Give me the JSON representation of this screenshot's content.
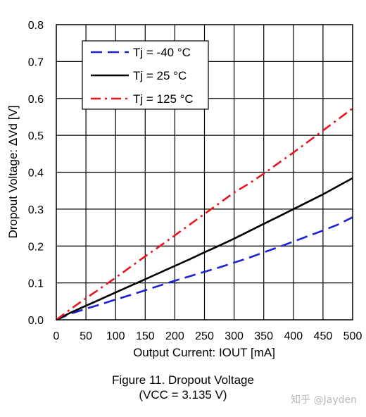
{
  "chart_data": {
    "type": "line",
    "xlabel": "Output Current: IOUT [mA]",
    "ylabel": "Dropout Voltage: ΔVd [V]",
    "xlim": [
      0,
      500
    ],
    "ylim": [
      0,
      0.8
    ],
    "x_ticks": [
      "0",
      "50",
      "100",
      "150",
      "200",
      "250",
      "300",
      "350",
      "400",
      "450",
      "500"
    ],
    "y_ticks": [
      "0.0",
      "0.1",
      "0.2",
      "0.3",
      "0.4",
      "0.5",
      "0.6",
      "0.7",
      "0.8"
    ],
    "grid": true,
    "legend_position": "top-left",
    "series": [
      {
        "name": "Tj = -40 °C",
        "color": "#1f1fd6",
        "style": "dashed",
        "x": [
          0,
          25,
          50,
          75,
          100,
          125,
          150,
          175,
          200,
          225,
          250,
          275,
          300,
          325,
          350,
          375,
          400,
          425,
          450,
          475,
          500
        ],
        "y": [
          0,
          0.017,
          0.03,
          0.042,
          0.055,
          0.067,
          0.08,
          0.093,
          0.106,
          0.118,
          0.13,
          0.142,
          0.155,
          0.168,
          0.183,
          0.197,
          0.212,
          0.227,
          0.242,
          0.258,
          0.278
        ]
      },
      {
        "name": "Tj = 25 °C",
        "color": "#000000",
        "style": "solid",
        "x": [
          0,
          25,
          50,
          75,
          100,
          125,
          150,
          175,
          200,
          225,
          250,
          275,
          300,
          325,
          350,
          375,
          400,
          425,
          450,
          475,
          500
        ],
        "y": [
          0,
          0.02,
          0.038,
          0.056,
          0.074,
          0.092,
          0.11,
          0.128,
          0.146,
          0.164,
          0.183,
          0.201,
          0.22,
          0.24,
          0.26,
          0.28,
          0.3,
          0.32,
          0.34,
          0.362,
          0.384
        ]
      },
      {
        "name": "Tj = 125 °C",
        "color": "#e8141e",
        "style": "dashdot",
        "x": [
          0,
          25,
          50,
          75,
          100,
          125,
          150,
          175,
          200,
          225,
          250,
          275,
          300,
          325,
          350,
          375,
          400,
          425,
          450,
          475,
          500
        ],
        "y": [
          0,
          0.03,
          0.058,
          0.086,
          0.114,
          0.143,
          0.172,
          0.2,
          0.229,
          0.258,
          0.287,
          0.316,
          0.345,
          0.369,
          0.396,
          0.425,
          0.453,
          0.483,
          0.513,
          0.543,
          0.573
        ]
      }
    ]
  },
  "caption": {
    "line1": "Figure 11. Dropout Voltage",
    "line2": "(VCC = 3.135 V)"
  },
  "watermark": "知乎 @Jayden"
}
